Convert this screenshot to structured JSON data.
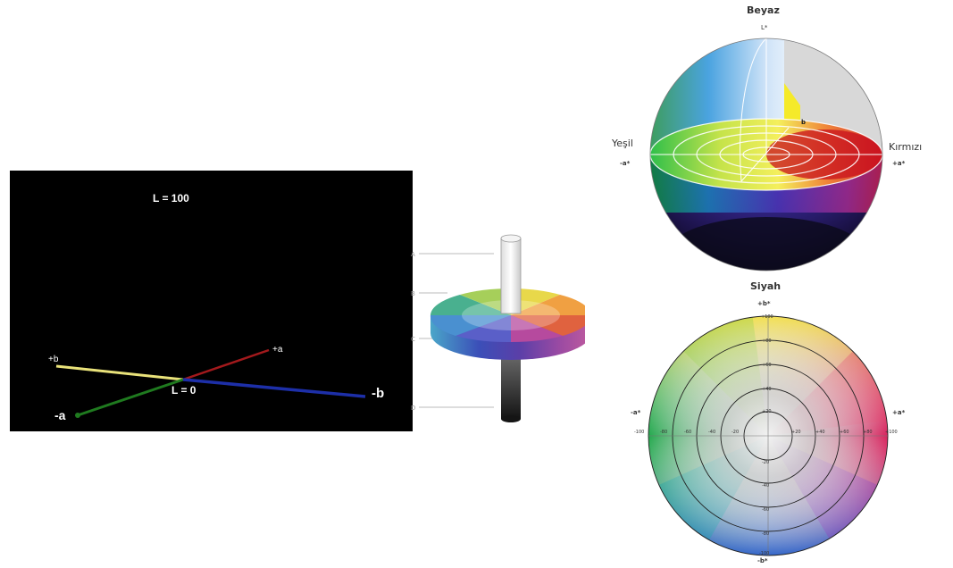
{
  "axes3d": {
    "l_top": "L = 100",
    "l_bottom": "L = 0",
    "plus_b": "+b",
    "plus_a": "+a",
    "minus_a": "-a",
    "minus_b": "-b",
    "colors": {
      "l_axis": "#bdbdbd",
      "b_plus": "#e9e27a",
      "a_plus": "#a3191c",
      "a_minus": "#1f7a1f",
      "b_minus": "#1d2fa8"
    }
  },
  "disc": {
    "labels": [
      "A",
      "B",
      "C",
      "D"
    ]
  },
  "sphere": {
    "top": "Beyaz",
    "l_star": "L*",
    "left": "Yeşil",
    "left_axis": "-a*",
    "right": "Kırmızı",
    "right_axis": "+a*",
    "b_label": "b",
    "bottom": "Siyah"
  },
  "circle": {
    "top_axis": "+b*",
    "bottom_axis": "-b*",
    "left_axis": "-a*",
    "right_axis": "+a*",
    "ticks_top": [
      "+100",
      "+80",
      "+60",
      "+40",
      "+20"
    ],
    "ticks_bottom": [
      "-20",
      "-40",
      "-60",
      "-80",
      "-100"
    ],
    "ticks_left": [
      "-100",
      "-80",
      "-60",
      "-40",
      "-20"
    ],
    "ticks_right": [
      "+20",
      "+40",
      "+60",
      "+80",
      "+100"
    ]
  }
}
